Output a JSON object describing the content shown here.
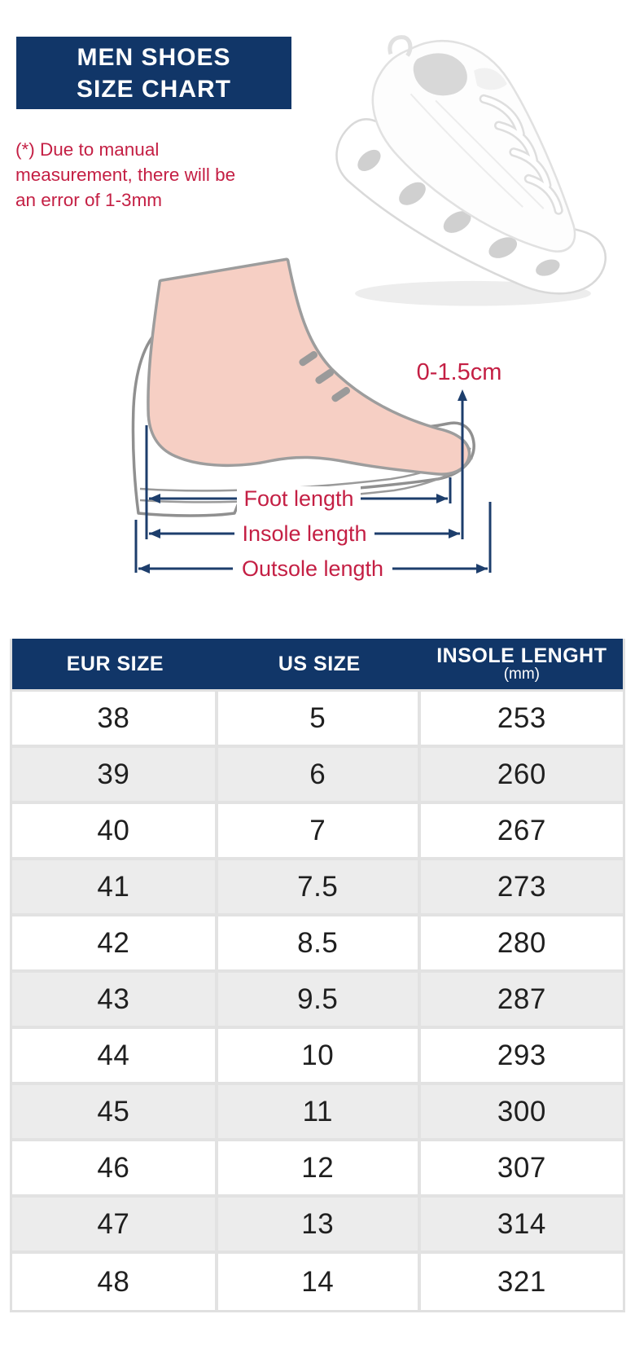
{
  "title": {
    "line1": "MEN SHOES",
    "line2": "SIZE CHART"
  },
  "note": {
    "lines": [
      "(*) Due to manual",
      "measurement, there will be",
      "an error of 1-3mm"
    ]
  },
  "hero_image": "white-running-sneaker-photo",
  "diagram": {
    "toe_gap": "0-1.5cm",
    "labels": [
      "Foot length",
      "Insole length",
      "Outsole length"
    ]
  },
  "colors": {
    "navy": "#113668",
    "arrow_navy": "#1d3e6c",
    "red": "#c41f44",
    "foot_pink": "#f6cfc4",
    "foot_shadow": "#9d9d9d",
    "shoe_outline": "#909090",
    "stripe_gray": "#ececec",
    "grid_gray": "#e2e2e2"
  },
  "table": {
    "headers": [
      {
        "label": "EUR SIZE"
      },
      {
        "label": "US SIZE"
      },
      {
        "label": "INSOLE LENGHT",
        "sub": "(mm)"
      }
    ]
  },
  "chart_data": {
    "type": "table",
    "title": "MEN SHOES SIZE CHART",
    "columns": [
      "EUR SIZE",
      "US SIZE",
      "INSOLE LENGHT (mm)"
    ],
    "rows": [
      [
        "38",
        "5",
        "253"
      ],
      [
        "39",
        "6",
        "260"
      ],
      [
        "40",
        "7",
        "267"
      ],
      [
        "41",
        "7.5",
        "273"
      ],
      [
        "42",
        "8.5",
        "280"
      ],
      [
        "43",
        "9.5",
        "287"
      ],
      [
        "44",
        "10",
        "293"
      ],
      [
        "45",
        "11",
        "300"
      ],
      [
        "46",
        "12",
        "307"
      ],
      [
        "47",
        "13",
        "314"
      ],
      [
        "48",
        "14",
        "321"
      ]
    ]
  }
}
